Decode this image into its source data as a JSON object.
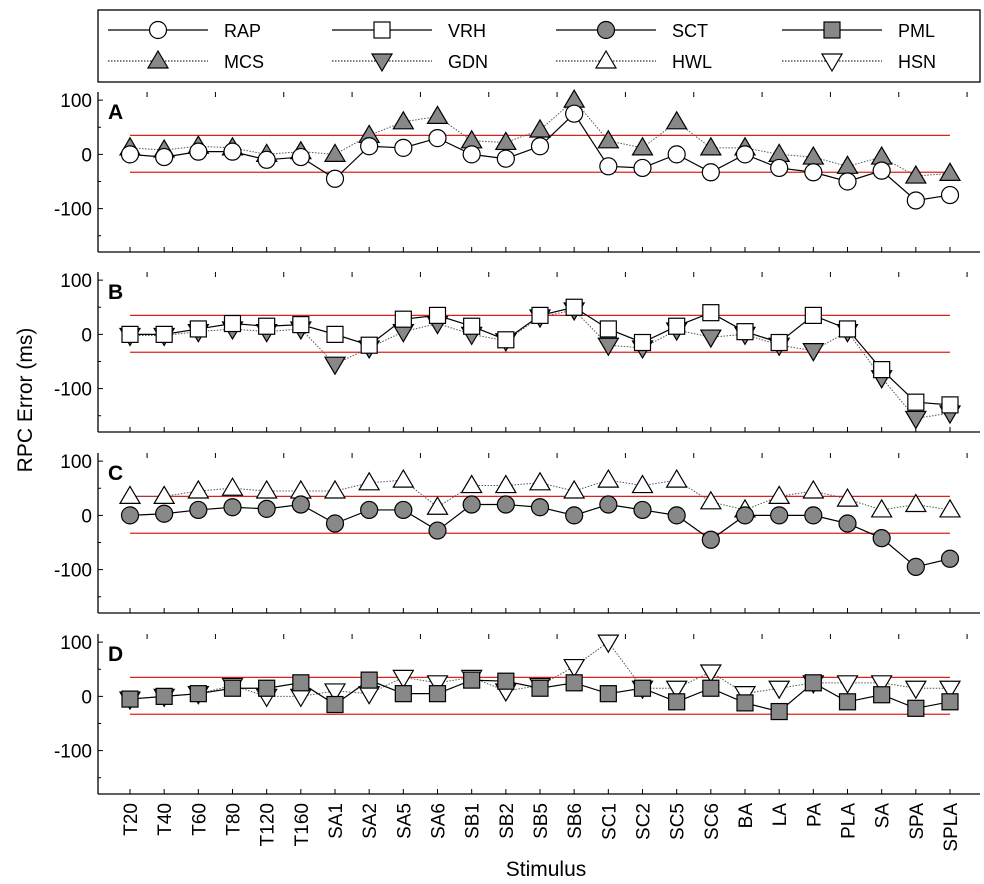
{
  "chart_data": {
    "type": "line",
    "xlabel": "Stimulus",
    "ylabel": "RPC Error (ms)",
    "ylim": [
      -180,
      115
    ],
    "yticks": [
      100,
      0,
      -100
    ],
    "threshold_lines": [
      35,
      -33
    ],
    "threshold_color": "#e0201c",
    "categories": [
      "T20",
      "T40",
      "T60",
      "T80",
      "T120",
      "T160",
      "SA1",
      "SA2",
      "SA5",
      "SA6",
      "SB1",
      "SB2",
      "SB5",
      "SB6",
      "SC1",
      "SC2",
      "SC5",
      "SC6",
      "BA",
      "LA",
      "PA",
      "PLA",
      "SA",
      "SPA",
      "SPLA"
    ],
    "legend": {
      "placement": "top",
      "entries": [
        {
          "name": "RAP",
          "marker": "circle",
          "fill": "#ffffff",
          "line": "solid"
        },
        {
          "name": "VRH",
          "marker": "square",
          "fill": "#ffffff",
          "line": "solid"
        },
        {
          "name": "SCT",
          "marker": "circle",
          "fill": "#888888",
          "line": "solid"
        },
        {
          "name": "PML",
          "marker": "square",
          "fill": "#888888",
          "line": "solid"
        },
        {
          "name": "MCS",
          "marker": "triangle-up",
          "fill": "#888888",
          "line": "dotted"
        },
        {
          "name": "GDN",
          "marker": "triangle-down",
          "fill": "#888888",
          "line": "dotted"
        },
        {
          "name": "HWL",
          "marker": "triangle-up",
          "fill": "#ffffff",
          "line": "dotted"
        },
        {
          "name": "HSN",
          "marker": "triangle-down",
          "fill": "#ffffff",
          "line": "dotted"
        }
      ]
    },
    "panels": [
      {
        "label": "A",
        "series": [
          {
            "name": "RAP",
            "marker": "circle",
            "fill": "#ffffff",
            "line": "solid",
            "values": [
              0,
              -5,
              5,
              5,
              -10,
              -5,
              -45,
              15,
              12,
              30,
              0,
              -8,
              15,
              75,
              -22,
              -25,
              0,
              -33,
              0,
              -25,
              -33,
              -50,
              -30,
              -85,
              -75
            ]
          },
          {
            "name": "MCS",
            "marker": "triangle-up",
            "fill": "#888888",
            "line": "dotted",
            "values": [
              12,
              8,
              15,
              12,
              0,
              5,
              0,
              35,
              60,
              70,
              25,
              22,
              45,
              100,
              25,
              12,
              60,
              12,
              12,
              0,
              -5,
              -22,
              -5,
              -40,
              -35
            ]
          }
        ]
      },
      {
        "label": "B",
        "series": [
          {
            "name": "VRH",
            "marker": "square",
            "fill": "#ffffff",
            "line": "solid",
            "values": [
              0,
              0,
              10,
              20,
              15,
              18,
              0,
              -20,
              28,
              35,
              15,
              -10,
              35,
              50,
              10,
              -15,
              15,
              40,
              5,
              -15,
              35,
              10,
              -65,
              -125,
              -130
            ]
          },
          {
            "name": "GDN",
            "marker": "triangle-down",
            "fill": "#888888",
            "line": "dotted",
            "values": [
              -2,
              -2,
              5,
              10,
              5,
              10,
              -55,
              -25,
              5,
              20,
              0,
              -12,
              32,
              45,
              -20,
              -25,
              8,
              -5,
              0,
              -20,
              -30,
              5,
              -80,
              -155,
              -145
            ]
          }
        ]
      },
      {
        "label": "C",
        "series": [
          {
            "name": "SCT",
            "marker": "circle",
            "fill": "#888888",
            "line": "solid",
            "values": [
              0,
              3,
              10,
              15,
              12,
              20,
              -15,
              10,
              10,
              -28,
              20,
              20,
              15,
              0,
              20,
              10,
              0,
              -45,
              0,
              0,
              0,
              -15,
              -42,
              -95,
              -80
            ]
          },
          {
            "name": "HWL",
            "marker": "triangle-up",
            "fill": "#ffffff",
            "line": "dotted",
            "values": [
              35,
              35,
              45,
              50,
              45,
              45,
              45,
              60,
              65,
              15,
              55,
              55,
              60,
              45,
              65,
              55,
              65,
              25,
              10,
              35,
              45,
              30,
              10,
              20,
              10
            ]
          }
        ]
      },
      {
        "label": "D",
        "series": [
          {
            "name": "PML",
            "marker": "square",
            "fill": "#888888",
            "line": "solid",
            "values": [
              -5,
              0,
              5,
              15,
              15,
              25,
              -15,
              30,
              5,
              5,
              30,
              28,
              15,
              25,
              5,
              15,
              -10,
              15,
              -12,
              -28,
              25,
              -10,
              3,
              -22,
              -10
            ]
          },
          {
            "name": "HSN",
            "marker": "triangle-down",
            "fill": "#ffffff",
            "line": "dotted",
            "values": [
              -5,
              0,
              5,
              20,
              0,
              0,
              10,
              5,
              35,
              25,
              35,
              10,
              20,
              55,
              100,
              15,
              15,
              45,
              5,
              15,
              25,
              25,
              25,
              15,
              15
            ]
          }
        ]
      }
    ]
  }
}
